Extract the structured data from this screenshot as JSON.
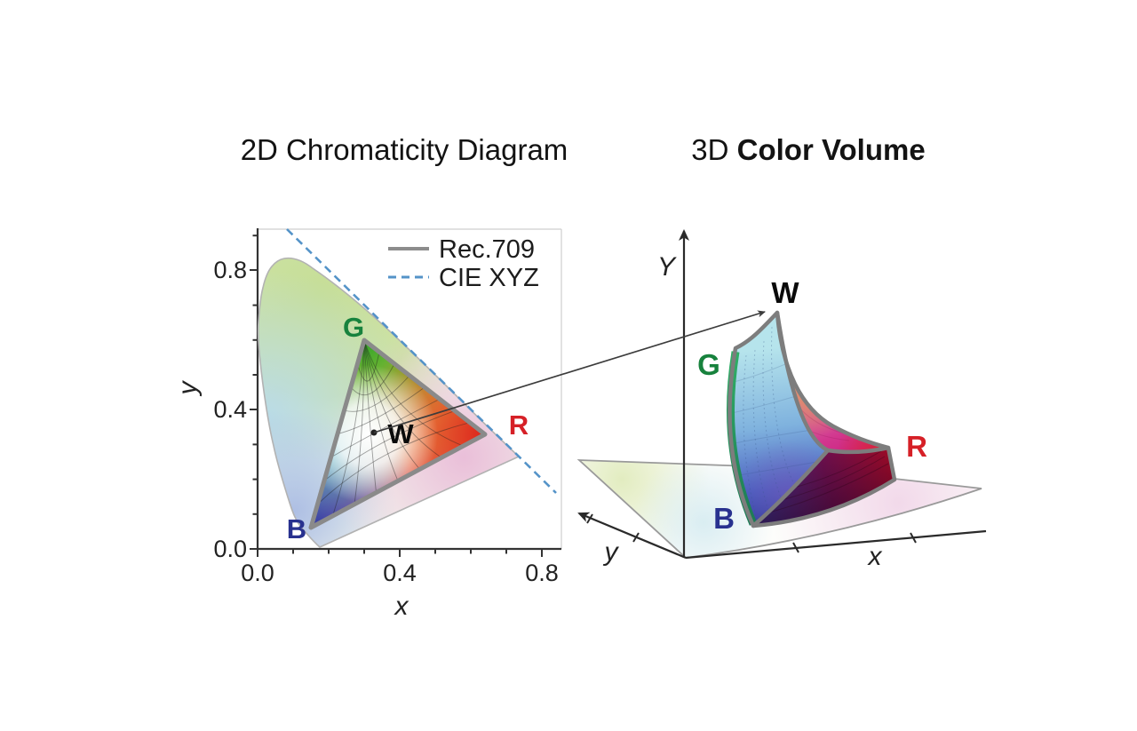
{
  "titles": {
    "left": "2D Chromaticity Diagram",
    "right_prefix": "3D",
    "right_bold": "Color Volume"
  },
  "chromaticity_2d": {
    "legend": [
      {
        "label": "Rec.709",
        "line_style": "solid",
        "line_color": "#8c8c8c"
      },
      {
        "label": "CIE XYZ",
        "line_style": "dashed",
        "line_color": "#5493c8"
      }
    ],
    "x_axis": {
      "label": "x",
      "tick_labels": [
        "0.0",
        "0.4",
        "0.8"
      ]
    },
    "y_axis": {
      "label": "y",
      "tick_labels": [
        "0.0",
        "0.4",
        "0.8"
      ]
    },
    "point_labels": {
      "G": "G",
      "R": "R",
      "B": "B",
      "W": "W"
    },
    "label_colors": {
      "G": "#17823d",
      "R": "#d62027",
      "B": "#28318f",
      "W": "#0a0a0a"
    },
    "rec709_primaries": {
      "R": [
        0.64,
        0.33
      ],
      "G": [
        0.3,
        0.6
      ],
      "B": [
        0.15,
        0.06
      ],
      "W": [
        0.313,
        0.329
      ]
    }
  },
  "color_volume_3d": {
    "axis_labels": {
      "vertical": "Y",
      "depth": "y",
      "horizontal": "x"
    },
    "point_labels": {
      "W": "W",
      "G": "G",
      "B": "B",
      "R": "R"
    },
    "label_colors": {
      "G": "#17823d",
      "R": "#d62027",
      "B": "#28318f",
      "W": "#0a0a0a"
    }
  }
}
